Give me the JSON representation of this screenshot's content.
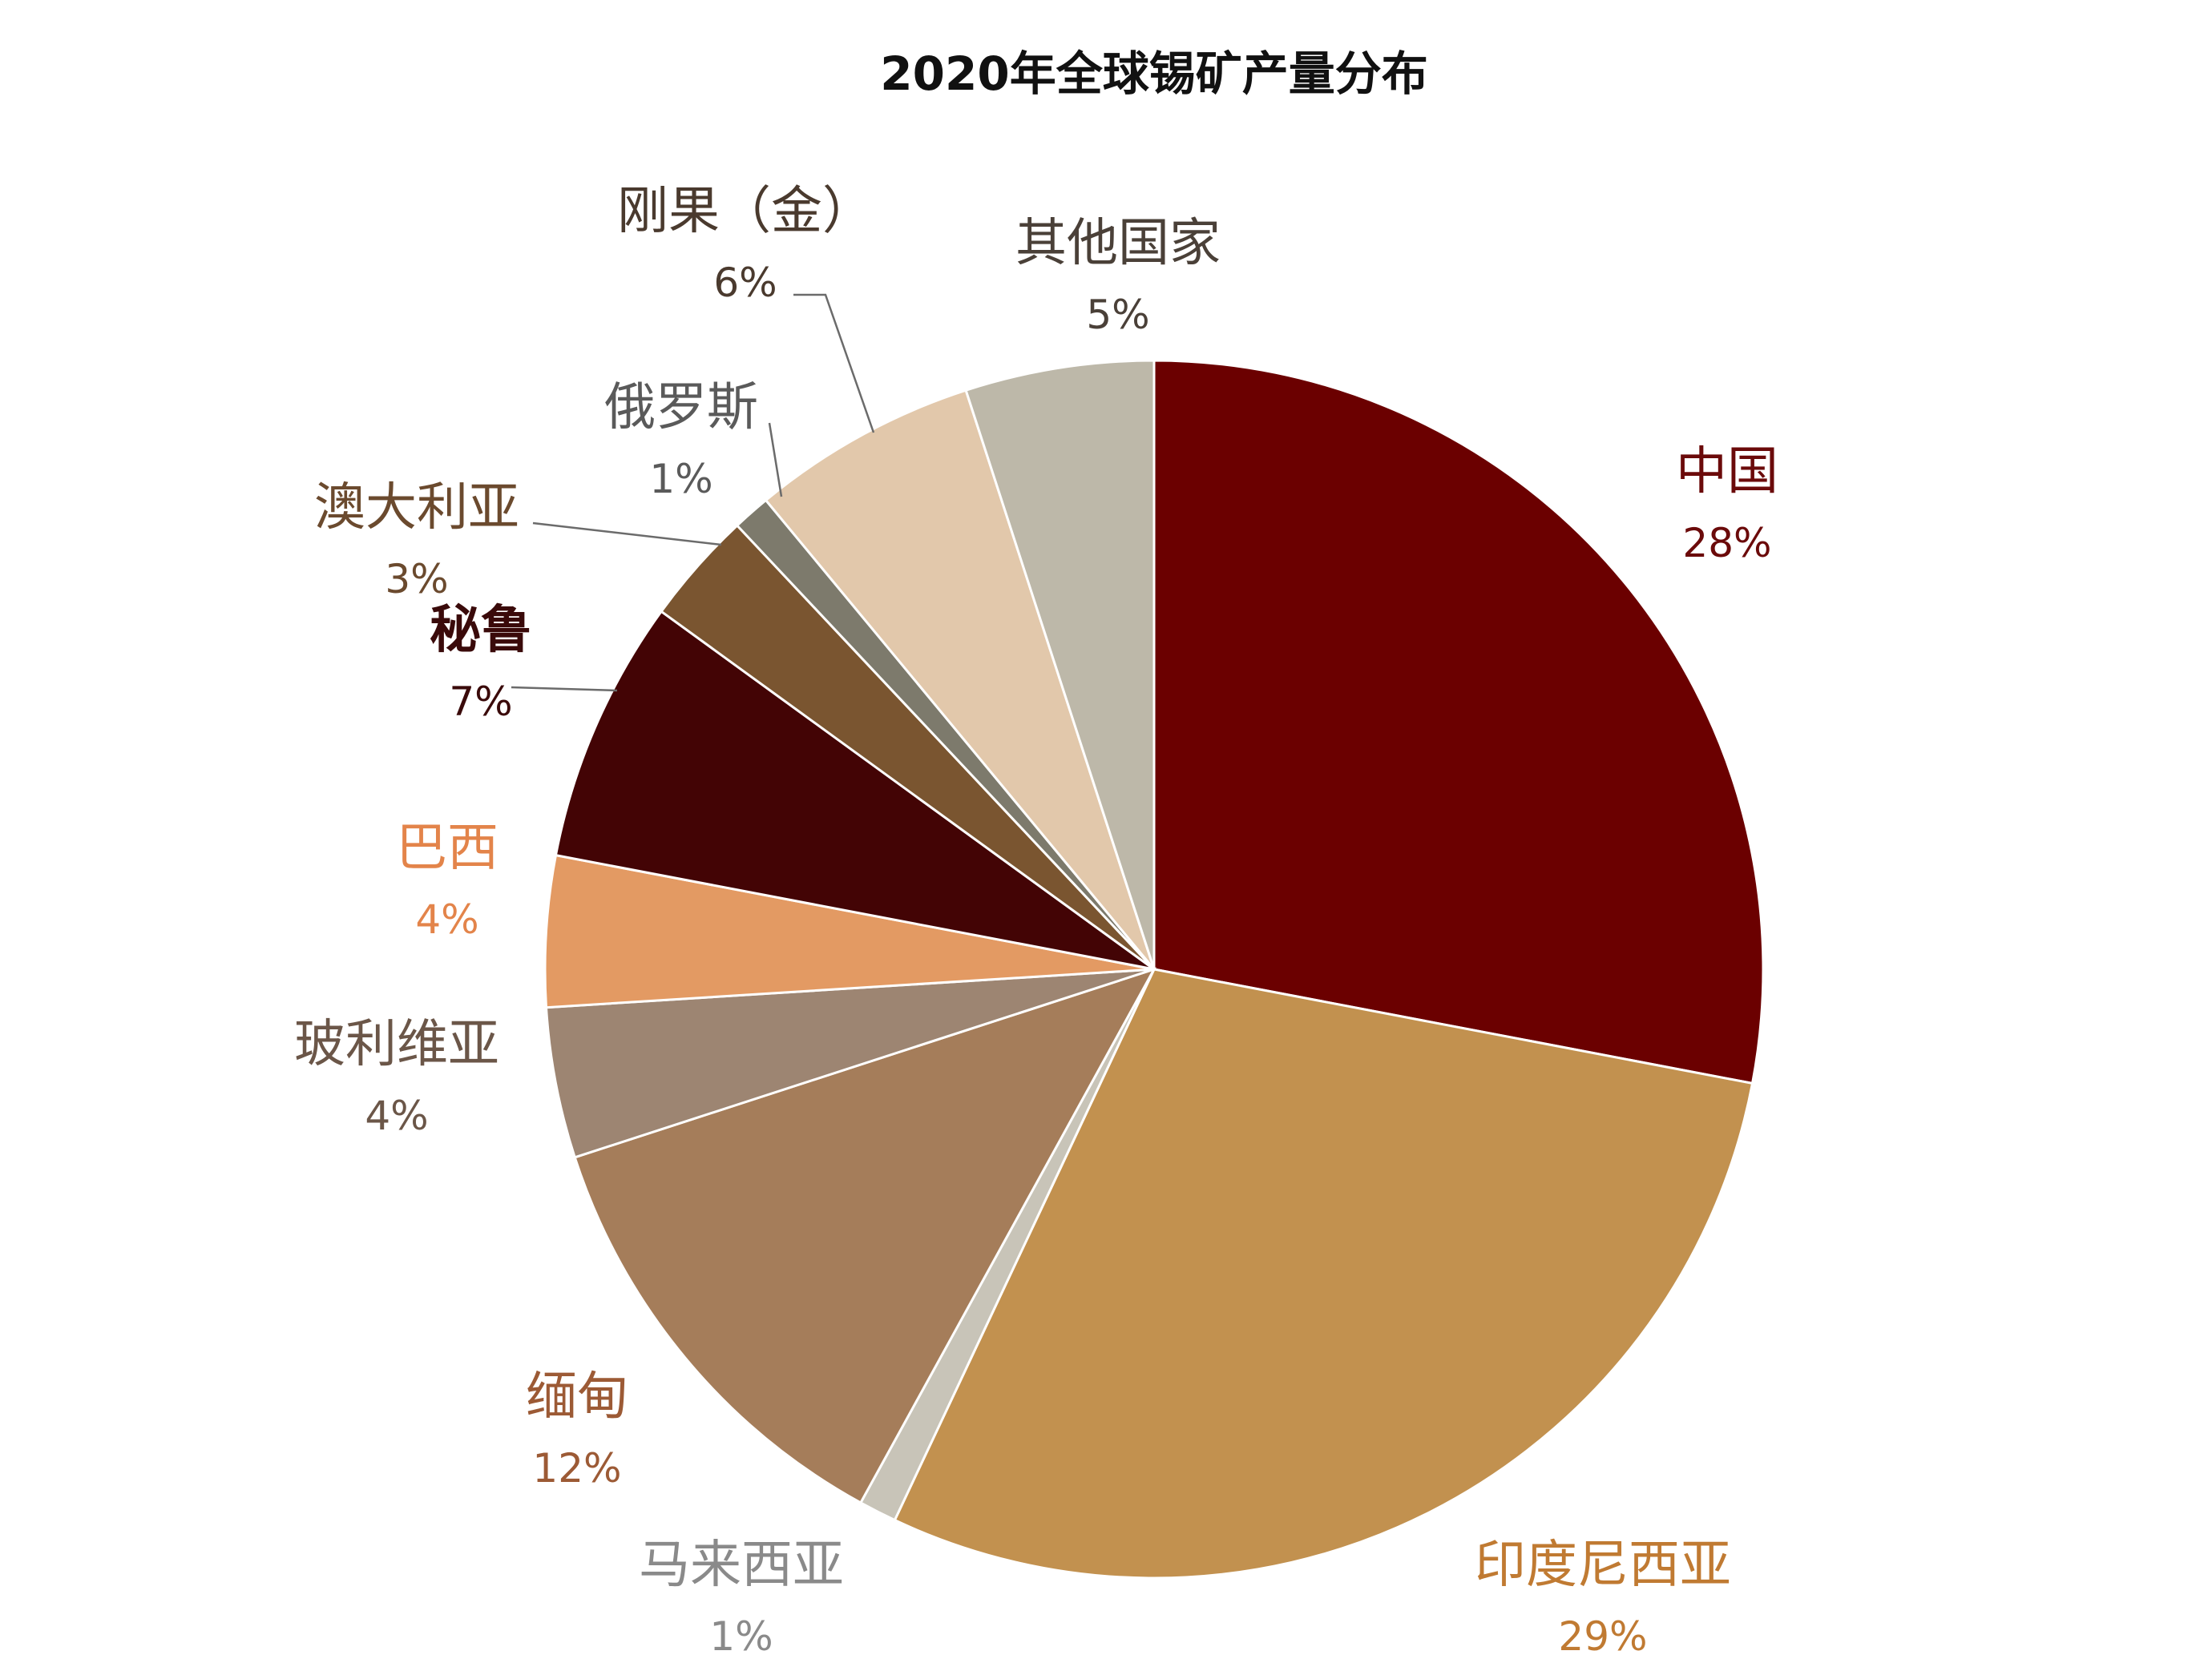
{
  "chart_data": {
    "type": "pie",
    "title": "2020年全球锡矿产量分布",
    "slices": [
      {
        "label": "中国",
        "value_label": "28%",
        "value": 28,
        "color": "#6b0000",
        "label_color": "#6b0a0a"
      },
      {
        "label": "印度尼西亚",
        "value_label": "29%",
        "value": 29,
        "color": "#c2914f",
        "label_color": "#c07a32"
      },
      {
        "label": "马来西亚",
        "value_label": "1%",
        "value": 1,
        "color": "#c8c4b8",
        "label_color": "#8a8a8a"
      },
      {
        "label": "缅甸",
        "value_label": "12%",
        "value": 12,
        "color": "#a57d5a",
        "label_color": "#9c5a35"
      },
      {
        "label": "玻利维亚",
        "value_label": "4%",
        "value": 4,
        "color": "#9d8572",
        "label_color": "#6b5648"
      },
      {
        "label": "巴西",
        "value_label": "4%",
        "value": 4,
        "color": "#e39a63",
        "label_color": "#e3844a"
      },
      {
        "label": "秘鲁",
        "value_label": "7%",
        "value": 7,
        "color": "#430405",
        "label_color": "#3a0a0a"
      },
      {
        "label": "澳大利亚",
        "value_label": "3%",
        "value": 3,
        "color": "#7a5530",
        "label_color": "#6b4a2e"
      },
      {
        "label": "俄罗斯",
        "value_label": "1%",
        "value": 1,
        "color": "#7d7a6c",
        "label_color": "#5a5a5a"
      },
      {
        "label": "刚果（金）",
        "value_label": "6%",
        "value": 6,
        "color": "#e2c8ab",
        "label_color": "#4a3a2e"
      },
      {
        "label": "其他国家",
        "value_label": "5%",
        "value": 5,
        "color": "#bdb8a9",
        "label_color": "#4a4038"
      }
    ]
  }
}
